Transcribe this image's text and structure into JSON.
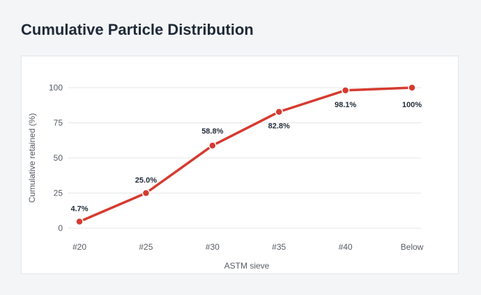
{
  "page": {
    "title": "Cumulative Particle Distribution"
  },
  "colors": {
    "line": "#d63a2f",
    "grid": "#e6e6e6"
  },
  "chart_data": {
    "type": "line",
    "title": "Cumulative Particle Distribution",
    "xlabel": "ASTM sieve",
    "ylabel": "Cumulative retained (%)",
    "categories": [
      "#20",
      "#25",
      "#30",
      "#35",
      "#40",
      "Below"
    ],
    "ylim": [
      0,
      100
    ],
    "yticks": [
      "0",
      "25",
      "50",
      "75",
      "100"
    ],
    "grid": true,
    "legend": "none",
    "series": [
      {
        "values": [
          4.7,
          25.0,
          58.8,
          82.8,
          98.1,
          100
        ],
        "labels": [
          "4.7%",
          "25.0%",
          "58.8%",
          "82.8%",
          "98.1%",
          "100%"
        ]
      }
    ]
  }
}
